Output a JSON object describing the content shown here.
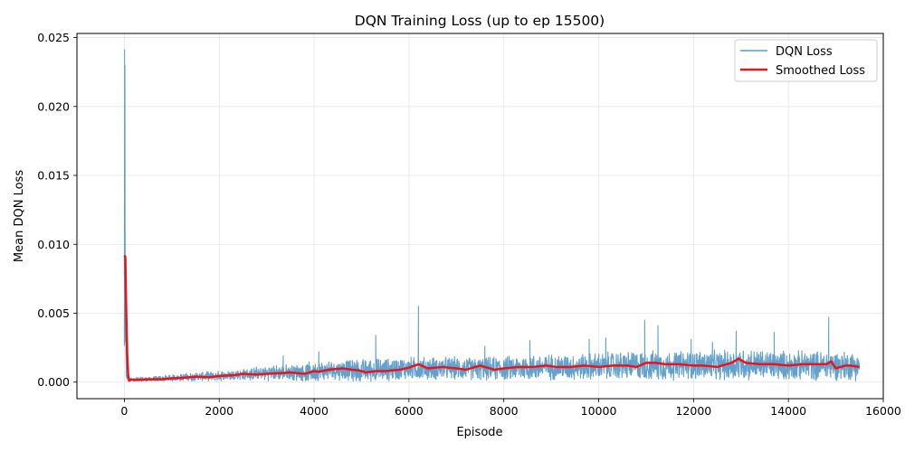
{
  "chart_data": {
    "type": "line",
    "title": "DQN Training Loss (up to ep 15500)",
    "xlabel": "Episode",
    "ylabel": "Mean DQN Loss",
    "xlim": [
      -1000,
      16000
    ],
    "ylim": [
      -0.0012,
      0.0253
    ],
    "xticks": [
      0,
      2000,
      4000,
      6000,
      8000,
      10000,
      12000,
      14000,
      16000
    ],
    "xtick_labels": [
      "0",
      "2000",
      "4000",
      "6000",
      "8000",
      "10000",
      "12000",
      "14000",
      "16000"
    ],
    "yticks": [
      0.0,
      0.005,
      0.01,
      0.015,
      0.02,
      0.025
    ],
    "ytick_labels": [
      "0.000",
      "0.005",
      "0.010",
      "0.015",
      "0.020",
      "0.025"
    ],
    "grid": true,
    "legend_position": "top-right",
    "series": [
      {
        "name": "DQN Loss",
        "color": "#5b9bc9",
        "style": "noisy-thin",
        "x": [
          0,
          10,
          20,
          30,
          40,
          60,
          100,
          300,
          600,
          1000,
          1500,
          2000,
          2500,
          3000,
          3500,
          4000,
          4500,
          5000,
          5500,
          6000,
          6500,
          7000,
          7500,
          8000,
          8500,
          9000,
          9500,
          10000,
          10500,
          11000,
          11500,
          12000,
          12500,
          13000,
          13500,
          14000,
          14500,
          15000,
          15500
        ],
        "center": [
          0.0025,
          0.012,
          0.0024,
          0.0032,
          0.0005,
          0.0003,
          0.0002,
          0.0002,
          0.00022,
          0.0003,
          0.0004,
          0.00045,
          0.00055,
          0.00065,
          0.0007,
          0.00075,
          0.0009,
          0.00085,
          0.0009,
          0.001,
          0.001,
          0.001,
          0.00095,
          0.001,
          0.00105,
          0.0011,
          0.0011,
          0.00115,
          0.0012,
          0.0012,
          0.0012,
          0.00125,
          0.0012,
          0.0013,
          0.00125,
          0.0012,
          0.0012,
          0.0012,
          0.0012
        ],
        "half_spread": [
          0.0005,
          0.002,
          0.0004,
          0.0004,
          0.0002,
          0.0001,
          0.00012,
          0.00015,
          0.00015,
          0.0002,
          0.00025,
          0.0003,
          0.00035,
          0.00045,
          0.0005,
          0.0006,
          0.0006,
          0.0007,
          0.0007,
          0.0007,
          0.0007,
          0.0007,
          0.0007,
          0.00075,
          0.0008,
          0.0008,
          0.0008,
          0.00085,
          0.0009,
          0.0009,
          0.0009,
          0.0009,
          0.0009,
          0.001,
          0.0009,
          0.0009,
          0.0009,
          0.0009,
          0.0009
        ],
        "spikes": [
          {
            "x": 5,
            "y": 0.0241
          },
          {
            "x": 12,
            "y": 0.023
          },
          {
            "x": 3350,
            "y": 0.0019
          },
          {
            "x": 4100,
            "y": 0.0022
          },
          {
            "x": 5300,
            "y": 0.0034
          },
          {
            "x": 6200,
            "y": 0.0055
          },
          {
            "x": 7600,
            "y": 0.0026
          },
          {
            "x": 8550,
            "y": 0.003
          },
          {
            "x": 9800,
            "y": 0.0031
          },
          {
            "x": 10150,
            "y": 0.0032
          },
          {
            "x": 10970,
            "y": 0.0045
          },
          {
            "x": 11250,
            "y": 0.0041
          },
          {
            "x": 11950,
            "y": 0.0031
          },
          {
            "x": 12400,
            "y": 0.0029
          },
          {
            "x": 12900,
            "y": 0.0037
          },
          {
            "x": 13700,
            "y": 0.0036
          },
          {
            "x": 14850,
            "y": 0.0047
          }
        ]
      },
      {
        "name": "Smoothed Loss",
        "color": "#e8141a",
        "style": "thick",
        "x": [
          0,
          20,
          40,
          60,
          80,
          100,
          150,
          200,
          300,
          500,
          800,
          1000,
          1200,
          1500,
          1800,
          2000,
          2300,
          2500,
          2800,
          3000,
          3300,
          3500,
          3800,
          4000,
          4100,
          4300,
          4600,
          4800,
          4950,
          5100,
          5300,
          5500,
          5800,
          6000,
          6200,
          6400,
          6700,
          7000,
          7200,
          7500,
          7800,
          8000,
          8300,
          8600,
          8900,
          9100,
          9400,
          9700,
          10000,
          10300,
          10600,
          10800,
          11000,
          11200,
          11400,
          11700,
          12000,
          12200,
          12500,
          12800,
          12950,
          13100,
          13400,
          13700,
          14000,
          14300,
          14600,
          14800,
          14900,
          15000,
          15200,
          15300,
          15500
        ],
        "y": [
          0.0092,
          0.0091,
          0.005,
          0.002,
          0.0005,
          0.0001,
          0.0002,
          0.00015,
          0.00015,
          0.0002,
          0.0002,
          0.00028,
          0.0003,
          0.0004,
          0.00035,
          0.00045,
          0.0005,
          0.0006,
          0.00055,
          0.0006,
          0.00065,
          0.0007,
          0.0006,
          0.0008,
          0.00075,
          0.0009,
          0.001,
          0.0009,
          0.00085,
          0.0007,
          0.0008,
          0.0008,
          0.0009,
          0.00105,
          0.0013,
          0.001,
          0.0011,
          0.001,
          0.0009,
          0.0012,
          0.0009,
          0.001,
          0.0011,
          0.0011,
          0.0012,
          0.0011,
          0.0011,
          0.0012,
          0.0011,
          0.0012,
          0.0012,
          0.0011,
          0.0014,
          0.0014,
          0.0013,
          0.0013,
          0.0012,
          0.0012,
          0.0011,
          0.0014,
          0.0017,
          0.0014,
          0.0013,
          0.0013,
          0.0012,
          0.0013,
          0.0013,
          0.0013,
          0.0015,
          0.001,
          0.0012,
          0.0012,
          0.0011
        ]
      }
    ]
  }
}
